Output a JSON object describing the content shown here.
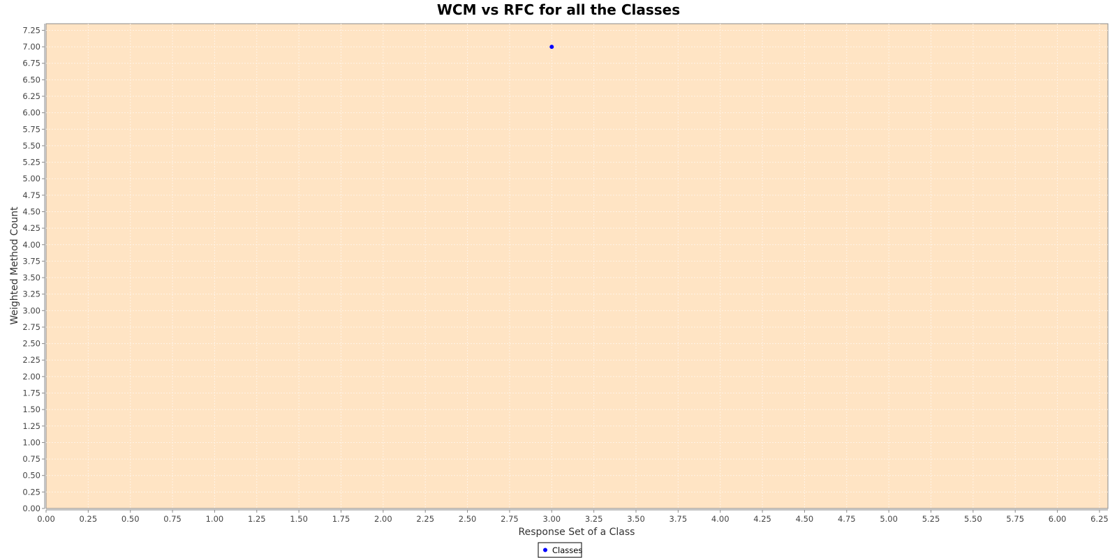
{
  "chart_data": {
    "type": "scatter",
    "title": "WCM vs RFC for all the Classes",
    "xlabel": "Response Set of a Class",
    "ylabel": "Weighted Method Count",
    "xlim": [
      0,
      6.3
    ],
    "ylim": [
      0,
      7.35
    ],
    "x_ticks": [
      "0.00",
      "0.25",
      "0.50",
      "0.75",
      "1.00",
      "1.25",
      "1.50",
      "1.75",
      "2.00",
      "2.25",
      "2.50",
      "2.75",
      "3.00",
      "3.25",
      "3.50",
      "3.75",
      "4.00",
      "4.25",
      "4.50",
      "4.75",
      "5.00",
      "5.25",
      "5.50",
      "5.75",
      "6.00",
      "6.25"
    ],
    "y_ticks": [
      "0.00",
      "0.25",
      "0.50",
      "0.75",
      "1.00",
      "1.25",
      "1.50",
      "1.75",
      "2.00",
      "2.25",
      "2.50",
      "2.75",
      "3.00",
      "3.25",
      "3.50",
      "3.75",
      "4.00",
      "4.25",
      "4.50",
      "4.75",
      "5.00",
      "5.25",
      "5.50",
      "5.75",
      "6.00",
      "6.25",
      "6.50",
      "6.75",
      "7.00",
      "7.25"
    ],
    "grid": true,
    "legend_position": "bottom-center",
    "series": [
      {
        "name": "Classes",
        "color": "#0000ff",
        "points": [
          {
            "x": 3.0,
            "y": 7.0
          }
        ]
      }
    ],
    "colors": {
      "plot_background": "#ffe4c4",
      "grid": "#fff3e6",
      "axis": "#888888"
    }
  }
}
